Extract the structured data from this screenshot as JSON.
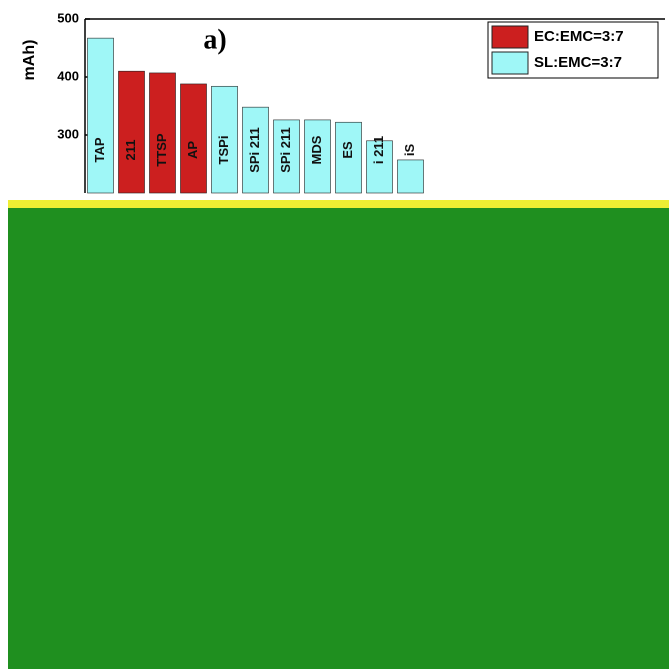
{
  "chart_data": {
    "type": "bar",
    "title": "a)",
    "y_label": "mAh)",
    "categories": [
      "TAP",
      "211",
      "TTSP",
      "AP",
      "TSPi",
      "SPi 211",
      "SPi 211",
      "MDS",
      "ES",
      "i 211",
      "iS",
      null
    ],
    "series": [
      {
        "name": "EC:EMC=3:7",
        "color": "#cc1f1f",
        "values": [
          null,
          410,
          407,
          388,
          null,
          null,
          null,
          null,
          null,
          null,
          null,
          null
        ]
      },
      {
        "name": "SL:EMC=3:7",
        "color": "#9ff7f7",
        "values": [
          467,
          null,
          null,
          null,
          384,
          348,
          326,
          326,
          322,
          290,
          257,
          null
        ]
      }
    ],
    "ylim": [
      200,
      500
    ],
    "yticks": [
      300,
      400,
      500
    ],
    "legend": "upper right"
  }
}
